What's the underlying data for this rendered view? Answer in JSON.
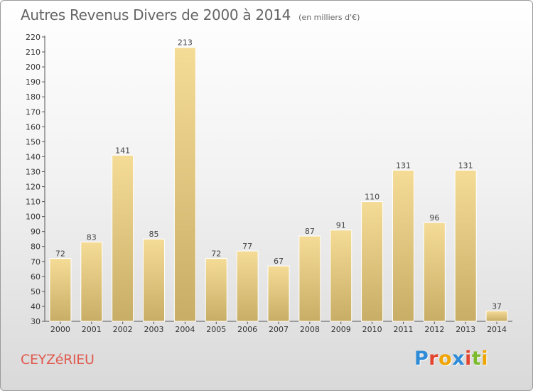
{
  "header": {
    "title": "Autres Revenus Divers de 2000 à 2014",
    "subtitle": "(en milliers d'€)"
  },
  "footer": {
    "commune": "CEYZéRIEU",
    "logo_text": "Proxiti",
    "logo_colors": [
      "#2e8bd8",
      "#e2442f",
      "#f0a500",
      "#2e8bd8",
      "#e2442f",
      "#7cbb2b",
      "#f0a500"
    ]
  },
  "chart_data": {
    "type": "bar",
    "title": "Autres Revenus Divers de 2000 à 2014",
    "subtitle": "(en milliers d'€)",
    "categories": [
      "2000",
      "2001",
      "2002",
      "2003",
      "2004",
      "2005",
      "2006",
      "2007",
      "2008",
      "2009",
      "2010",
      "2011",
      "2012",
      "2013",
      "2014"
    ],
    "values": [
      72,
      83,
      141,
      85,
      213,
      72,
      77,
      67,
      87,
      91,
      110,
      131,
      96,
      131,
      37
    ],
    "ylim": [
      30,
      220
    ],
    "yticks": [
      30,
      40,
      50,
      60,
      70,
      80,
      90,
      100,
      110,
      120,
      130,
      140,
      150,
      160,
      170,
      180,
      190,
      200,
      210,
      220
    ],
    "grid": false,
    "bar_color_light": "#f5dc96",
    "bar_color_dark": "#c8ad66"
  }
}
